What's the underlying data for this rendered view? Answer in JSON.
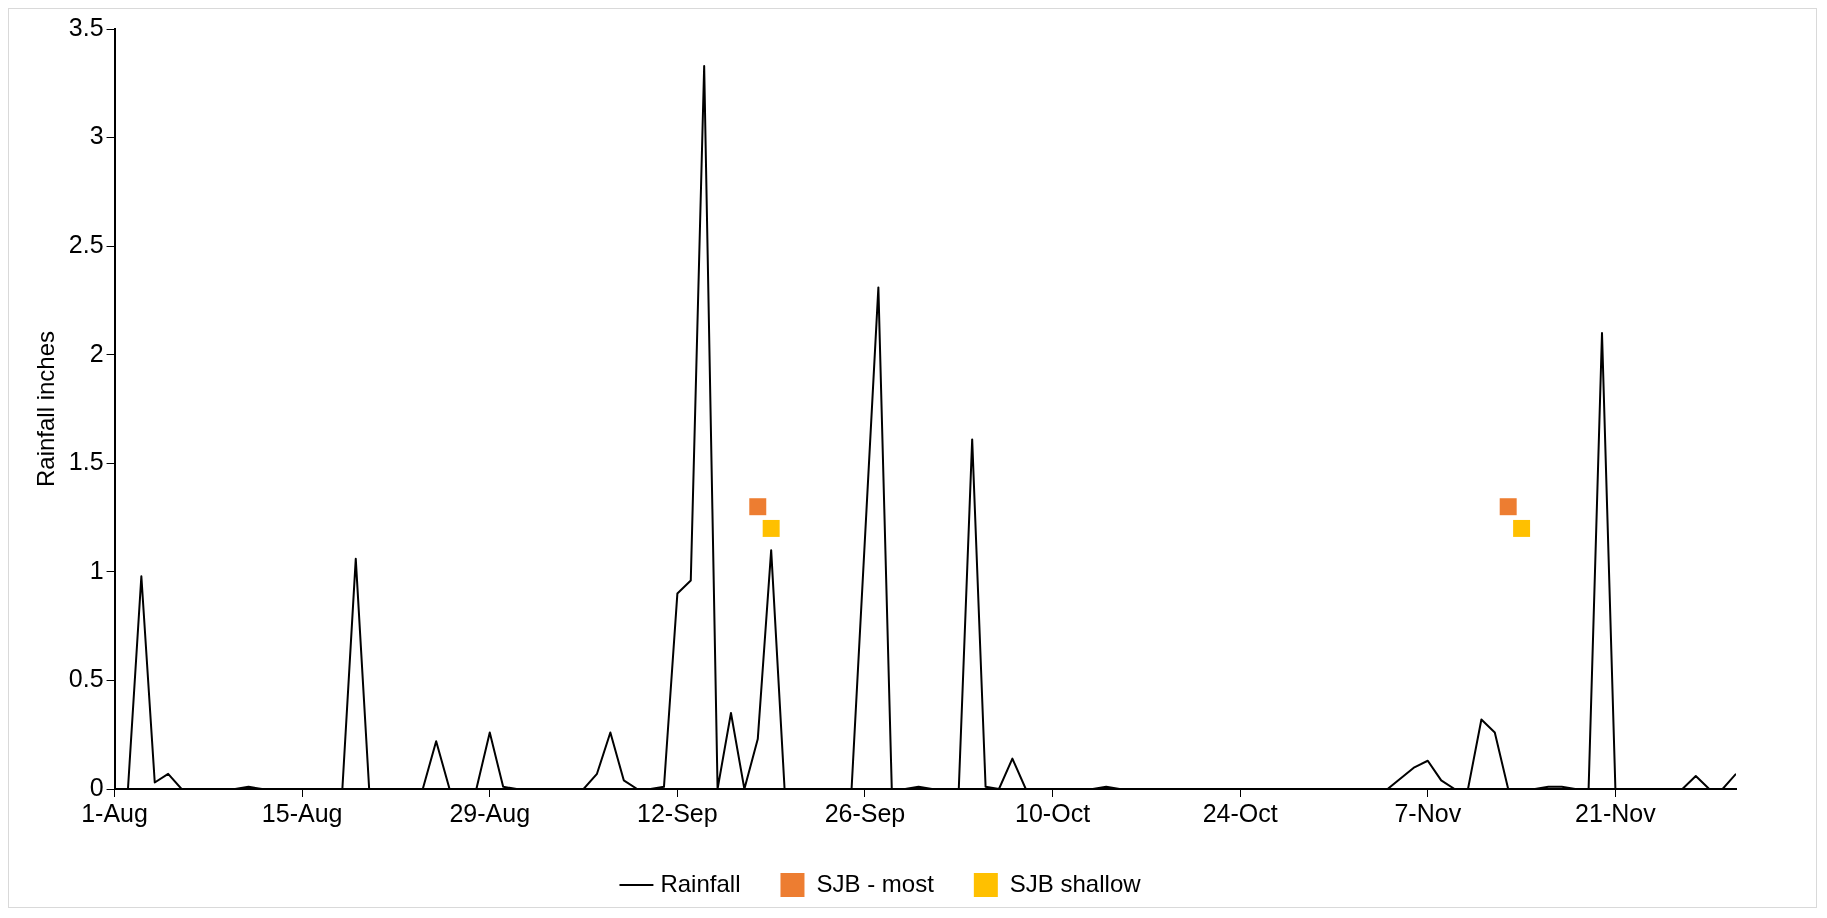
{
  "chart_data": {
    "type": "line",
    "ylabel": "Rainfall inches",
    "xlim": [
      "--08-01",
      "--11-30"
    ],
    "xticks": [
      {
        "value": "--08-01",
        "label": "1-Aug"
      },
      {
        "value": "--08-15",
        "label": "15-Aug"
      },
      {
        "value": "--08-29",
        "label": "29-Aug"
      },
      {
        "value": "--09-12",
        "label": "12-Sep"
      },
      {
        "value": "--09-26",
        "label": "26-Sep"
      },
      {
        "value": "--10-10",
        "label": "10-Oct"
      },
      {
        "value": "--10-24",
        "label": "24-Oct"
      },
      {
        "value": "--11-07",
        "label": "7-Nov"
      },
      {
        "value": "--11-21",
        "label": "21-Nov"
      }
    ],
    "ylim": [
      0,
      3.5
    ],
    "yticks": [
      0,
      0.5,
      1,
      1.5,
      2,
      2.5,
      3,
      3.5
    ],
    "grid": false,
    "legend": "bottom",
    "series": [
      {
        "name": "Rainfall",
        "color": "#000000",
        "marker": "none",
        "x": [
          "--08-01",
          "--08-02",
          "--08-03",
          "--08-04",
          "--08-05",
          "--08-06",
          "--08-10",
          "--08-11",
          "--08-12",
          "--08-18",
          "--08-19",
          "--08-20",
          "--08-24",
          "--08-25",
          "--08-26",
          "--08-28",
          "--08-29",
          "--08-30",
          "--08-31",
          "--09-05",
          "--09-06",
          "--09-07",
          "--09-08",
          "--09-09",
          "--09-10",
          "--09-11",
          "--09-12",
          "--09-13",
          "--09-14",
          "--09-15",
          "--09-16",
          "--09-17",
          "--09-18",
          "--09-19",
          "--09-20",
          "--09-25",
          "--09-27",
          "--09-28",
          "--09-29",
          "--09-30",
          "--10-01",
          "--10-03",
          "--10-04",
          "--10-05",
          "--10-06",
          "--10-07",
          "--10-08",
          "--10-13",
          "--10-14",
          "--10-15",
          "--11-04",
          "--11-06",
          "--11-07",
          "--11-08",
          "--11-09",
          "--11-10",
          "--11-11",
          "--11-12",
          "--11-13",
          "--11-15",
          "--11-16",
          "--11-17",
          "--11-18",
          "--11-19",
          "--11-20",
          "--11-21",
          "--11-26",
          "--11-27",
          "--11-28",
          "--11-29",
          "--11-30"
        ],
        "values": [
          0,
          0,
          0.98,
          0.03,
          0.07,
          0,
          0,
          0.01,
          0,
          0,
          1.06,
          0,
          0,
          0.22,
          0,
          0,
          0.26,
          0.01,
          0,
          0,
          0.07,
          0.26,
          0.04,
          0,
          0,
          0.01,
          0.9,
          0.96,
          3.33,
          0,
          0.35,
          0,
          0.23,
          1.1,
          0,
          0,
          2.31,
          0,
          0,
          0.01,
          0,
          0,
          1.61,
          0.01,
          0,
          0.14,
          0,
          0,
          0.01,
          0,
          0,
          0.1,
          0.13,
          0.04,
          0,
          0,
          0.32,
          0.26,
          0,
          0,
          0.01,
          0.01,
          0,
          0,
          2.1,
          0,
          0,
          0.06,
          0,
          0,
          0.07
        ]
      },
      {
        "name": "SJB - most",
        "type": "scatter",
        "color": "#ed7d31",
        "marker": "square",
        "x": [
          "--09-18",
          "--11-13"
        ],
        "values": [
          1.3,
          1.3
        ]
      },
      {
        "name": "SJB shallow",
        "type": "scatter",
        "color": "#ffc000",
        "marker": "square",
        "x": [
          "--09-19",
          "--11-14"
        ],
        "values": [
          1.2,
          1.2
        ]
      }
    ]
  }
}
